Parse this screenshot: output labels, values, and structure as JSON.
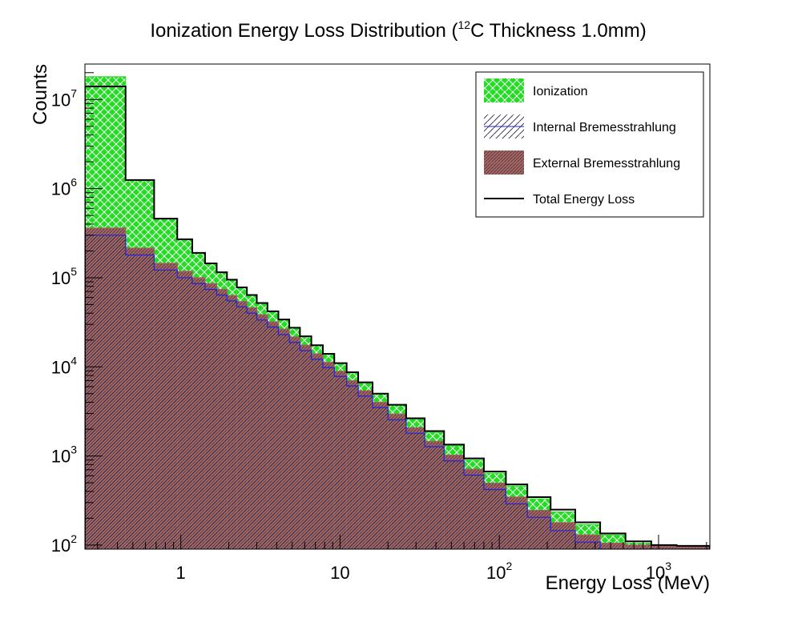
{
  "chart_data": {
    "type": "histogram",
    "title": "Ionization Energy Loss Distribution (",
    "title_sup": "12",
    "title_rest": "C Thickness 1.0mm)",
    "xlabel": "Energy Loss (MeV)",
    "ylabel": "Counts",
    "x_scale": "log",
    "y_scale": "log",
    "xlim": [
      0.25,
      2100
    ],
    "ylim": [
      90,
      25000000
    ],
    "grid": false,
    "legend_position": "top-right",
    "x_ticks": [
      {
        "value": 1,
        "base": "1",
        "exp": ""
      },
      {
        "value": 10,
        "base": "10",
        "exp": ""
      },
      {
        "value": 100,
        "base": "10",
        "exp": "2"
      },
      {
        "value": 1000,
        "base": "10",
        "exp": "3"
      }
    ],
    "y_ticks": [
      {
        "value": 100,
        "base": "10",
        "exp": "2"
      },
      {
        "value": 1000,
        "base": "10",
        "exp": "3"
      },
      {
        "value": 10000,
        "base": "10",
        "exp": "4"
      },
      {
        "value": 100000,
        "base": "10",
        "exp": "5"
      },
      {
        "value": 1000000,
        "base": "10",
        "exp": "6"
      },
      {
        "value": 10000000,
        "base": "10",
        "exp": "7"
      }
    ],
    "bins_note": "Energy loss bins (MeV)",
    "bin_edges": [
      0.25,
      0.45,
      0.68,
      0.95,
      1.18,
      1.42,
      1.68,
      1.95,
      2.25,
      2.6,
      3.0,
      3.5,
      4.1,
      4.8,
      5.6,
      6.6,
      7.8,
      9.2,
      11,
      13,
      16,
      20,
      26,
      34,
      45,
      60,
      80,
      110,
      150,
      210,
      300,
      430,
      620,
      900,
      1300,
      2100
    ],
    "series": [
      {
        "name": "Ionization",
        "color": "#33dd33",
        "fill": "crosshatch",
        "values": [
          18000000,
          1250000,
          460000,
          270000,
          190000,
          145000,
          115000,
          95000,
          78000,
          64000,
          52000,
          42000,
          34000,
          27500,
          22000,
          17500,
          14000,
          11000,
          8700,
          6700,
          5000,
          3700,
          2600,
          1850,
          1300,
          900,
          640,
          460,
          330,
          235,
          170,
          130,
          105,
          100,
          98
        ]
      },
      {
        "name": "Internal Bremesstrahlung",
        "color": "#2222dd",
        "fill": "diagonal",
        "values": [
          300000,
          180000,
          122000,
          100000,
          86000,
          74000,
          64000,
          55000,
          47000,
          40000,
          33500,
          28000,
          23000,
          18800,
          15200,
          12200,
          9800,
          7800,
          6100,
          4700,
          3500,
          2550,
          1800,
          1270,
          880,
          610,
          420,
          290,
          205,
          145,
          108,
          90,
          90,
          90,
          90
        ]
      },
      {
        "name": "External Bremesstrahlung",
        "color": "#a06060",
        "fill": "dense",
        "values": [
          360000,
          215000,
          145000,
          118000,
          100000,
          86000,
          74000,
          63000,
          54000,
          46000,
          38500,
          32000,
          26500,
          21600,
          17500,
          14000,
          11200,
          8900,
          7000,
          5400,
          4000,
          2950,
          2080,
          1460,
          1020,
          710,
          495,
          345,
          245,
          178,
          130,
          105,
          100,
          98,
          96
        ]
      },
      {
        "name": "Total Energy Loss",
        "color": "#000000",
        "fill": "none",
        "values": [
          14000000,
          1250000,
          460000,
          270000,
          190000,
          145000,
          115000,
          95000,
          78000,
          64000,
          52000,
          42000,
          34000,
          27500,
          22000,
          17500,
          14000,
          11000,
          8700,
          6700,
          5000,
          3750,
          2650,
          1900,
          1340,
          940,
          670,
          480,
          345,
          250,
          180,
          135,
          110,
          100,
          98
        ]
      }
    ]
  }
}
